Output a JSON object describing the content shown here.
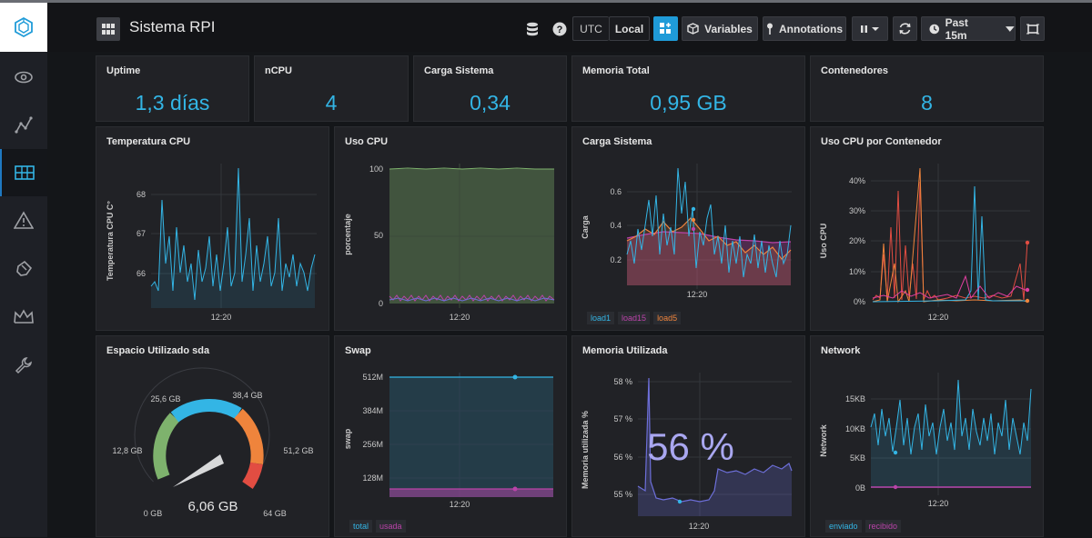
{
  "app": {
    "dashboard_title": "Sistema RPI",
    "tz_utc": "UTC",
    "tz_local": "Local",
    "variables_label": "Variables",
    "annotations_label": "Annotations",
    "time_range": "Past 15m",
    "sidebar_icons": [
      "view-icon",
      "explore-icon",
      "dashboard-icon",
      "alert-icon",
      "plugin-icon",
      "admin-icon",
      "config-icon"
    ]
  },
  "stats": {
    "uptime": {
      "title": "Uptime",
      "value": "1,3 días"
    },
    "ncpu": {
      "title": "nCPU",
      "value": "4"
    },
    "load": {
      "title": "Carga Sistema",
      "value": "0,34"
    },
    "memtotal": {
      "title": "Memoria Total",
      "value": "0,95 GB"
    },
    "containers": {
      "title": "Contenedores",
      "value": "8"
    }
  },
  "panels": {
    "temp": {
      "title": "Temperatura CPU",
      "ylabel": "Temperatura CPU C°",
      "yticks": [
        "68",
        "67",
        "66"
      ],
      "xtick": "12:20"
    },
    "cpu": {
      "title": "Uso CPU",
      "ylabel": "porcentaje",
      "yticks": [
        "100",
        "50",
        "0"
      ],
      "xtick": "12:20"
    },
    "load": {
      "title": "Carga Sistema",
      "ylabel": "Carga",
      "yticks": [
        "0.6",
        "0.4",
        "0.2"
      ],
      "xtick": "12:20",
      "legend": [
        "load1",
        "load15",
        "load5"
      ]
    },
    "cpucont": {
      "title": "Uso CPU por Contenedor",
      "ylabel": "Uso CPU",
      "yticks": [
        "40%",
        "30%",
        "20%",
        "10%",
        "0%"
      ],
      "xtick": "12:20"
    },
    "disk": {
      "title": "Espacio Utilizado sda",
      "value": "6,06 GB",
      "ticks": [
        "0 GB",
        "12,8 GB",
        "25,6 GB",
        "38,4 GB",
        "51,2 GB",
        "64 GB"
      ],
      "fraction": 0.095
    },
    "swap": {
      "title": "Swap",
      "ylabel": "swap",
      "yticks": [
        "512M",
        "384M",
        "256M",
        "128M"
      ],
      "xtick": "12:20",
      "legend": [
        "total",
        "usada"
      ]
    },
    "mem": {
      "title": "Memoria Utilizada",
      "ylabel": "Memoria utilizada %",
      "yticks": [
        "58 %",
        "57 %",
        "56 %",
        "55 %"
      ],
      "xtick": "12:20",
      "big_value": "56 %"
    },
    "net": {
      "title": "Network",
      "ylabel": "Network",
      "yticks": [
        "15KB",
        "10KB",
        "5KB",
        "0B"
      ],
      "xtick": "12:20",
      "legend": [
        "enviado",
        "recibido"
      ]
    }
  },
  "colors": {
    "blue": "#33b5e5",
    "green": "#7eb26d",
    "orange": "#ef843c",
    "purple": "#ba43a9",
    "red": "#e24d42"
  }
}
